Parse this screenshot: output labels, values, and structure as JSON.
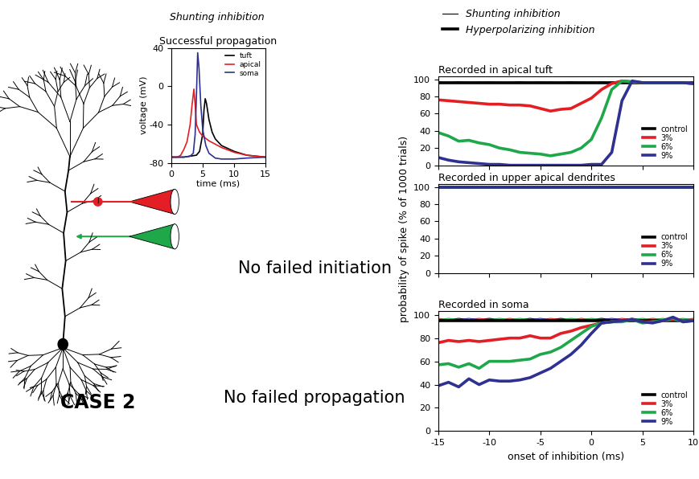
{
  "chart_data": [
    {
      "type": "line",
      "title": "Successful propagation",
      "xlabel": "time (ms)",
      "ylabel": "voltage (mV)",
      "xlim": [
        0,
        15
      ],
      "xticks": [
        0,
        5,
        10,
        15
      ],
      "ylim": [
        -80,
        40
      ],
      "yticks": [
        -80,
        -40,
        0,
        40
      ],
      "legend": "upper right",
      "series": [
        {
          "name": "tuft",
          "color": "#000000",
          "x": [
            0,
            1,
            2,
            3,
            4,
            4.5,
            5,
            5.2,
            5.4,
            5.6,
            6,
            6.5,
            7,
            8,
            10,
            12,
            15
          ],
          "values": [
            -74,
            -74,
            -74,
            -73,
            -72,
            -68,
            -50,
            -25,
            -13,
            -18,
            -35,
            -48,
            -55,
            -62,
            -68,
            -72,
            -74
          ]
        },
        {
          "name": "apical",
          "color": "#e31e24",
          "x": [
            0,
            1,
            1.5,
            2,
            2.5,
            3,
            3.3,
            3.6,
            3.8,
            4,
            4.5,
            5,
            6,
            8,
            10,
            12,
            15
          ],
          "values": [
            -74,
            -74,
            -72,
            -66,
            -58,
            -40,
            -20,
            -3,
            -20,
            -40,
            -48,
            -52,
            -57,
            -64,
            -69,
            -72,
            -74
          ]
        },
        {
          "name": "soma",
          "color": "#2e3192",
          "x": [
            0,
            1,
            2,
            3,
            3.5,
            3.8,
            4,
            4.2,
            4.4,
            4.7,
            5,
            5.5,
            6,
            7,
            8,
            10,
            12,
            15
          ],
          "values": [
            -74,
            -74,
            -74,
            -73,
            -70,
            -50,
            -10,
            35,
            20,
            -20,
            -45,
            -62,
            -70,
            -75,
            -76,
            -76,
            -75,
            -74
          ]
        }
      ]
    },
    {
      "type": "line",
      "title": "Recorded in apical tuft",
      "tick_labels": "y",
      "legend": "lower right",
      "xlim": [
        -15,
        10
      ],
      "xticks": [
        -15,
        -10,
        -5,
        0,
        5,
        10
      ],
      "ylim": [
        0,
        103
      ],
      "yticks": [
        0,
        20,
        40,
        60,
        80,
        100
      ],
      "x": [
        -15,
        -14,
        -13,
        -12,
        -11,
        -10,
        -9,
        -8,
        -7,
        -6,
        -5,
        -4,
        -3,
        -2,
        -1,
        0,
        1,
        2,
        3,
        4,
        5,
        6,
        7,
        8,
        9,
        10
      ],
      "shunting_series": [
        {
          "color": "#000000",
          "line_style": "thin",
          "values": [
            97,
            96,
            97,
            96,
            96,
            97,
            96,
            96,
            97,
            96,
            97,
            96,
            96,
            97,
            96,
            96,
            97,
            96,
            96,
            97,
            96,
            96,
            97,
            96,
            96,
            95
          ]
        },
        {
          "color": "#e31e24",
          "line_style": "thin",
          "values": [
            96,
            97,
            96,
            97,
            96,
            96,
            97,
            96,
            96,
            97,
            96,
            96,
            97,
            96,
            97,
            96,
            96,
            97,
            96,
            96,
            97,
            96,
            96,
            97,
            96,
            96
          ]
        },
        {
          "color": "#1fa84a",
          "line_style": "thin",
          "values": [
            97,
            96,
            96,
            97,
            96,
            97,
            96,
            97,
            96,
            96,
            97,
            96,
            96,
            96,
            97,
            96,
            97,
            96,
            97,
            96,
            96,
            97,
            96,
            96,
            97,
            96
          ]
        },
        {
          "color": "#2e3192",
          "line_style": "thin",
          "values": [
            96,
            96,
            97,
            96,
            97,
            96,
            96,
            96,
            97,
            96,
            96,
            97,
            96,
            97,
            96,
            97,
            96,
            96,
            96,
            97,
            96,
            96,
            96,
            97,
            96,
            95
          ]
        }
      ],
      "series": [
        {
          "name": "control",
          "color": "#000000",
          "line_style": "thick",
          "values": [
            96,
            96,
            96,
            96,
            96,
            96,
            96,
            96,
            96,
            96,
            96,
            96,
            96,
            96,
            96,
            96,
            96,
            96,
            96,
            96,
            96,
            96,
            96,
            96,
            96,
            96
          ]
        },
        {
          "name": "3%",
          "color": "#e31e24",
          "line_style": "thick",
          "values": [
            76,
            75,
            74,
            73,
            72,
            71,
            71,
            70,
            70,
            69,
            66,
            63,
            65,
            66,
            72,
            78,
            88,
            95,
            98,
            97,
            96,
            96,
            96,
            96,
            96,
            95
          ]
        },
        {
          "name": "6%",
          "color": "#1fa84a",
          "line_style": "thick",
          "values": [
            38,
            34,
            28,
            29,
            26,
            24,
            20,
            18,
            15,
            14,
            13,
            11,
            13,
            15,
            20,
            30,
            55,
            88,
            98,
            97,
            96,
            96,
            96,
            96,
            96,
            95
          ]
        },
        {
          "name": "9%",
          "color": "#2e3192",
          "line_style": "thick",
          "values": [
            9,
            6,
            4,
            3,
            2,
            1,
            1,
            0,
            0,
            0,
            0,
            0,
            0,
            0,
            0,
            1,
            1,
            15,
            75,
            98,
            96,
            96,
            96,
            96,
            96,
            95
          ]
        }
      ]
    },
    {
      "type": "line",
      "title": "Recorded in upper apical dendrites",
      "tick_labels": "y",
      "legend": "lower right",
      "ylabel": "probability of spike (% of 1000 trials)",
      "xlim": [
        -15,
        10
      ],
      "xticks": [
        -15,
        -10,
        -5,
        0,
        5,
        10
      ],
      "ylim": [
        0,
        103
      ],
      "yticks": [
        0,
        20,
        40,
        60,
        80,
        100
      ],
      "x": [
        -15,
        -14,
        -13,
        -12,
        -11,
        -10,
        -9,
        -8,
        -7,
        -6,
        -5,
        -4,
        -3,
        -2,
        -1,
        0,
        1,
        2,
        3,
        4,
        5,
        6,
        7,
        8,
        9,
        10
      ],
      "shunting_series": [
        {
          "color": "#000000",
          "line_style": "thin",
          "values": [
            100,
            100,
            100,
            100,
            100,
            100,
            100,
            100,
            100,
            100,
            100,
            100,
            100,
            100,
            100,
            100,
            100,
            100,
            100,
            100,
            100,
            100,
            100,
            100,
            100,
            100
          ]
        },
        {
          "color": "#e31e24",
          "line_style": "thin",
          "values": [
            100,
            100,
            100,
            100,
            100,
            100,
            100,
            100,
            100,
            100,
            100,
            100,
            100,
            100,
            100,
            100,
            100,
            100,
            100,
            100,
            100,
            100,
            100,
            100,
            100,
            100
          ]
        },
        {
          "color": "#1fa84a",
          "line_style": "thin",
          "values": [
            100,
            100,
            100,
            100,
            100,
            100,
            100,
            100,
            100,
            100,
            100,
            100,
            100,
            100,
            100,
            100,
            100,
            100,
            100,
            100,
            100,
            100,
            100,
            100,
            100,
            100
          ]
        },
        {
          "color": "#2e3192",
          "line_style": "thin",
          "values": [
            100,
            100,
            100,
            100,
            100,
            100,
            100,
            100,
            100,
            100,
            100,
            100,
            100,
            100,
            100,
            100,
            100,
            100,
            100,
            100,
            100,
            100,
            100,
            100,
            100,
            100
          ]
        }
      ],
      "series": [
        {
          "name": "control",
          "color": "#000000",
          "line_style": "thick",
          "values": [
            100,
            100,
            100,
            100,
            100,
            100,
            100,
            100,
            100,
            100,
            100,
            100,
            100,
            100,
            100,
            100,
            100,
            100,
            100,
            100,
            100,
            100,
            100,
            100,
            100,
            100
          ]
        },
        {
          "name": "3%",
          "color": "#e31e24",
          "line_style": "thick",
          "values": [
            100,
            100,
            100,
            100,
            100,
            100,
            100,
            100,
            100,
            100,
            100,
            100,
            100,
            100,
            100,
            100,
            100,
            100,
            100,
            100,
            100,
            100,
            100,
            100,
            100,
            100
          ]
        },
        {
          "name": "6%",
          "color": "#1fa84a",
          "line_style": "thick",
          "values": [
            100,
            100,
            100,
            100,
            100,
            100,
            100,
            100,
            100,
            100,
            100,
            100,
            100,
            100,
            100,
            100,
            100,
            100,
            100,
            100,
            100,
            100,
            100,
            100,
            100,
            100
          ]
        },
        {
          "name": "9%",
          "color": "#2e3192",
          "line_style": "thick",
          "values": [
            100,
            100,
            100,
            100,
            100,
            100,
            100,
            100,
            100,
            100,
            100,
            100,
            100,
            100,
            100,
            100,
            100,
            100,
            100,
            100,
            100,
            100,
            100,
            100,
            100,
            100
          ]
        }
      ]
    },
    {
      "type": "line",
      "title": "Recorded in soma",
      "xlabel": "onset of inhibition (ms)",
      "legend": "lower right",
      "xlim": [
        -15,
        10
      ],
      "xticks": [
        -15,
        -10,
        -5,
        0,
        5,
        10
      ],
      "ylim": [
        0,
        103
      ],
      "yticks": [
        0,
        20,
        40,
        60,
        80,
        100
      ],
      "x": [
        -15,
        -14,
        -13,
        -12,
        -11,
        -10,
        -9,
        -8,
        -7,
        -6,
        -5,
        -4,
        -3,
        -2,
        -1,
        0,
        1,
        2,
        3,
        4,
        5,
        6,
        7,
        8,
        9,
        10
      ],
      "shunting_series": [
        {
          "color": "#000000",
          "line_style": "thin",
          "values": [
            96,
            96,
            97,
            96,
            96,
            97,
            96,
            96,
            96,
            97,
            96,
            96,
            97,
            96,
            96,
            96,
            97,
            96,
            96,
            97,
            96,
            96,
            96,
            97,
            96,
            96
          ]
        },
        {
          "color": "#e31e24",
          "line_style": "thin",
          "values": [
            97,
            96,
            96,
            96,
            97,
            96,
            96,
            97,
            96,
            96,
            96,
            97,
            96,
            96,
            97,
            96,
            96,
            96,
            97,
            96,
            96,
            97,
            96,
            96,
            96,
            97
          ]
        },
        {
          "color": "#1fa84a",
          "line_style": "thin",
          "values": [
            96,
            97,
            96,
            96,
            96,
            96,
            97,
            96,
            97,
            96,
            96,
            96,
            96,
            97,
            96,
            97,
            96,
            96,
            96,
            96,
            97,
            96,
            97,
            96,
            97,
            96
          ]
        },
        {
          "color": "#2e3192",
          "line_style": "thin",
          "values": [
            96,
            96,
            96,
            97,
            96,
            96,
            96,
            96,
            96,
            96,
            97,
            96,
            96,
            96,
            96,
            96,
            96,
            97,
            96,
            96,
            96,
            96,
            96,
            96,
            96,
            96
          ]
        }
      ],
      "series": [
        {
          "name": "control",
          "color": "#000000",
          "line_style": "thick",
          "values": [
            95,
            95,
            95,
            95,
            95,
            95,
            95,
            95,
            95,
            95,
            95,
            95,
            95,
            95,
            95,
            95,
            95,
            95,
            95,
            95,
            95,
            95,
            95,
            95,
            95,
            95
          ]
        },
        {
          "name": "3%",
          "color": "#e31e24",
          "line_style": "thick",
          "values": [
            76,
            78,
            77,
            78,
            77,
            78,
            79,
            80,
            80,
            82,
            80,
            80,
            84,
            86,
            89,
            91,
            93,
            94,
            95,
            96,
            94,
            94,
            95,
            96,
            95,
            95
          ]
        },
        {
          "name": "6%",
          "color": "#1fa84a",
          "line_style": "thick",
          "values": [
            57,
            58,
            55,
            58,
            54,
            60,
            60,
            60,
            61,
            62,
            66,
            68,
            72,
            78,
            84,
            90,
            93,
            94,
            94,
            96,
            93,
            94,
            95,
            97,
            94,
            95
          ]
        },
        {
          "name": "9%",
          "color": "#2e3192",
          "line_style": "thick",
          "values": [
            39,
            42,
            38,
            45,
            40,
            44,
            43,
            43,
            44,
            46,
            50,
            54,
            60,
            66,
            74,
            84,
            93,
            94,
            95,
            96,
            94,
            93,
            95,
            98,
            94,
            95
          ]
        }
      ]
    }
  ],
  "line_legend": [
    {
      "name": "Shunting inhibition",
      "line_style": "thin",
      "color": "#000000"
    },
    {
      "name": "Hyperpolarizing inhibition",
      "line_style": "thick",
      "color": "#000000"
    }
  ],
  "texts": {
    "header": "Shunting inhibition",
    "initiation": "No failed initiation",
    "propagation": "No failed propagation",
    "case": "CASE 2",
    "synapse": "I"
  }
}
